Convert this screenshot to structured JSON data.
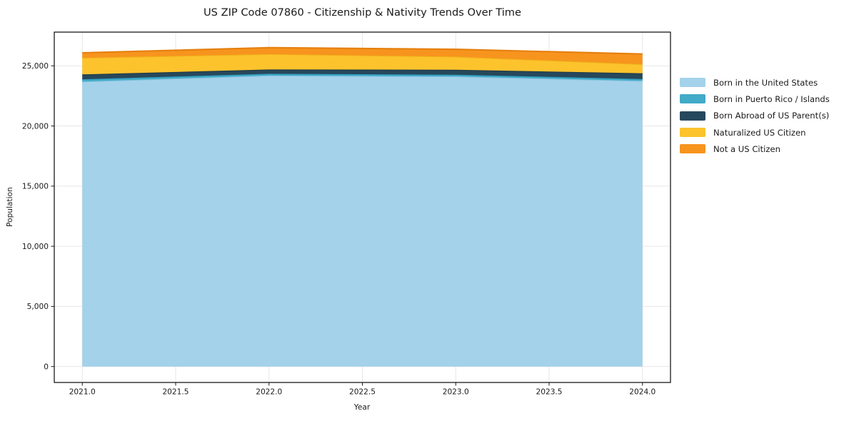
{
  "chart_data": {
    "type": "area",
    "stacked": true,
    "title": "US ZIP Code 07860 - Citizenship & Nativity Trends Over Time",
    "xlabel": "Year",
    "ylabel": "Population",
    "x": [
      2021,
      2022,
      2023,
      2024
    ],
    "series": [
      {
        "name": "Born in the United States",
        "color": "#a4d2ea",
        "edge_color": "#85c2e0",
        "values": [
          23690,
          24200,
          24120,
          23750
        ]
      },
      {
        "name": "Born in Puerto Rico / Islands",
        "color": "#41abc8",
        "edge_color": "#2f9cbc",
        "values": [
          195,
          140,
          140,
          155
        ]
      },
      {
        "name": "Born Abroad of US Parent(s)",
        "color": "#27485c",
        "edge_color": "#1d3949",
        "values": [
          400,
          355,
          415,
          475
        ]
      },
      {
        "name": "Naturalized US Citizen",
        "color": "#fcc32d",
        "edge_color": "#efb21a",
        "values": [
          1385,
          1280,
          1090,
          755
        ]
      },
      {
        "name": "Not a US Citizen",
        "color": "#f7941e",
        "edge_color": "#e57f0e",
        "values": [
          415,
          535,
          610,
          850
        ]
      }
    ],
    "xlim": [
      2020.85,
      2024.15
    ],
    "ylim": [
      -1324,
      27804
    ],
    "xticks": [
      2021.0,
      2021.5,
      2022.0,
      2022.5,
      2023.0,
      2023.5,
      2024.0
    ],
    "xtick_labels": [
      "2021.0",
      "2021.5",
      "2022.0",
      "2022.5",
      "2023.0",
      "2023.5",
      "2024.0"
    ],
    "yticks": [
      0,
      5000,
      10000,
      15000,
      20000,
      25000
    ],
    "ytick_labels": [
      "0",
      "5,000",
      "10,000",
      "15,000",
      "20,000",
      "25,000"
    ],
    "grid": true,
    "grid_color": "#e7e7e7",
    "axis_color": "#1a1a1a",
    "tick_label_color": "#1a1a1a",
    "background_color": "#ffffff",
    "legend_position": "right"
  }
}
